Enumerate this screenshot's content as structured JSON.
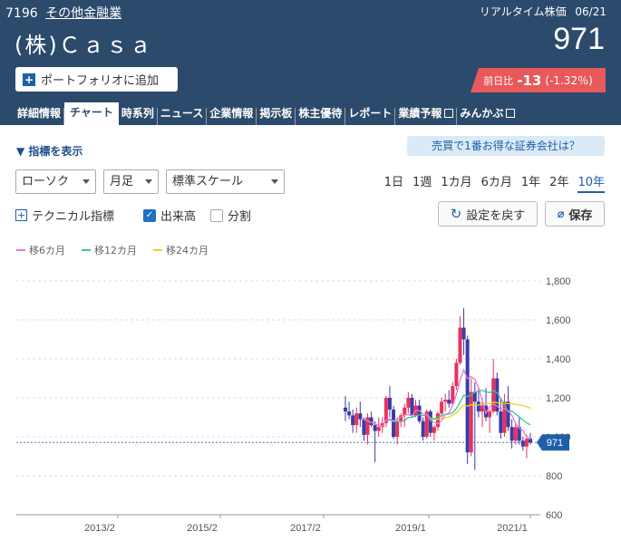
{
  "header": {
    "code": "7196",
    "category": "その他金融業",
    "realtime_label": "リアルタイム株価",
    "date": "06/21",
    "company": "(株)Ｃａｓａ",
    "price": "971",
    "portfolio_label": "ポートフォリオに追加",
    "change_label": "前日比",
    "change_value": "-13",
    "change_pct": "(-1.32％)"
  },
  "tabs": [
    "詳細情報",
    "チャート",
    "時系列",
    "ニュース",
    "企業情報",
    "掲示板",
    "株主優待",
    "レポート",
    "業績予報",
    "みんかぶ"
  ],
  "controls": {
    "indicator_toggle": "指標を表示",
    "promo": "売買で1番お得な証券会社は？",
    "chart_type": "ローソク",
    "interval": "月足",
    "scale": "標準スケール",
    "periods": [
      "1日",
      "1週",
      "1カ月",
      "6カ月",
      "1年",
      "2年",
      "10年"
    ],
    "active_period": "10年",
    "technical": "テクニカル指標",
    "volume": "出来高",
    "split": "分割",
    "reset": "設定を戻す",
    "save": "保存"
  },
  "colors": {
    "header": "#2c4a6b",
    "up": "#e8325a",
    "down": "#3b3ba8",
    "ma6": "#e37ad8",
    "ma12": "#35c79a",
    "ma24": "#e8d61a",
    "accent": "#1f5fa8"
  },
  "chart_data": {
    "type": "candlestick",
    "x_ticks": [
      "2013/2",
      "2015/2",
      "2017/2",
      "2019/1",
      "2021/1"
    ],
    "y_ticks": [
      600,
      800,
      1000,
      1200,
      1400,
      1600,
      1800
    ],
    "ylim": [
      600,
      1800
    ],
    "current_price_label": "971",
    "current_price": 971,
    "legend": [
      "移6カ月",
      "移12カ月",
      "移24カ月"
    ],
    "candles": [
      {
        "o": 1150,
        "h": 1210,
        "l": 1080,
        "c": 1130
      },
      {
        "o": 1130,
        "h": 1180,
        "l": 1090,
        "c": 1110
      },
      {
        "o": 1110,
        "h": 1140,
        "l": 1020,
        "c": 1060
      },
      {
        "o": 1060,
        "h": 1150,
        "l": 1020,
        "c": 1120
      },
      {
        "o": 1120,
        "h": 1180,
        "l": 1050,
        "c": 1090
      },
      {
        "o": 1090,
        "h": 1100,
        "l": 980,
        "c": 1010
      },
      {
        "o": 1010,
        "h": 1120,
        "l": 960,
        "c": 1100
      },
      {
        "o": 1100,
        "h": 1130,
        "l": 1050,
        "c": 1060
      },
      {
        "o": 1060,
        "h": 1080,
        "l": 870,
        "c": 1030
      },
      {
        "o": 1030,
        "h": 1100,
        "l": 1000,
        "c": 1050
      },
      {
        "o": 1050,
        "h": 1100,
        "l": 1020,
        "c": 1070
      },
      {
        "o": 1070,
        "h": 1210,
        "l": 1050,
        "c": 1200
      },
      {
        "o": 1200,
        "h": 1260,
        "l": 1100,
        "c": 1140
      },
      {
        "o": 1140,
        "h": 1160,
        "l": 990,
        "c": 1000
      },
      {
        "o": 1000,
        "h": 1100,
        "l": 960,
        "c": 1080
      },
      {
        "o": 1080,
        "h": 1120,
        "l": 1050,
        "c": 1110
      },
      {
        "o": 1110,
        "h": 1170,
        "l": 1050,
        "c": 1150
      },
      {
        "o": 1150,
        "h": 1230,
        "l": 1120,
        "c": 1200
      },
      {
        "o": 1200,
        "h": 1220,
        "l": 1100,
        "c": 1110
      },
      {
        "o": 1110,
        "h": 1190,
        "l": 1100,
        "c": 1160
      },
      {
        "o": 1160,
        "h": 1190,
        "l": 1070,
        "c": 1080
      },
      {
        "o": 1080,
        "h": 1100,
        "l": 980,
        "c": 1000
      },
      {
        "o": 1000,
        "h": 1140,
        "l": 990,
        "c": 1130
      },
      {
        "o": 1130,
        "h": 1140,
        "l": 1000,
        "c": 1020
      },
      {
        "o": 1020,
        "h": 1060,
        "l": 980,
        "c": 1050
      },
      {
        "o": 1050,
        "h": 1130,
        "l": 1030,
        "c": 1120
      },
      {
        "o": 1120,
        "h": 1200,
        "l": 1100,
        "c": 1180
      },
      {
        "o": 1180,
        "h": 1220,
        "l": 1130,
        "c": 1190
      },
      {
        "o": 1190,
        "h": 1240,
        "l": 1150,
        "c": 1170
      },
      {
        "o": 1170,
        "h": 1280,
        "l": 1160,
        "c": 1260
      },
      {
        "o": 1260,
        "h": 1400,
        "l": 1240,
        "c": 1380
      },
      {
        "o": 1380,
        "h": 1620,
        "l": 1370,
        "c": 1560
      },
      {
        "o": 1560,
        "h": 1660,
        "l": 1420,
        "c": 1500
      },
      {
        "o": 1500,
        "h": 1520,
        "l": 860,
        "c": 920
      },
      {
        "o": 920,
        "h": 1300,
        "l": 900,
        "c": 1230
      },
      {
        "o": 1230,
        "h": 1280,
        "l": 830,
        "c": 1180
      },
      {
        "o": 1180,
        "h": 1250,
        "l": 1100,
        "c": 1130
      },
      {
        "o": 1130,
        "h": 1200,
        "l": 1050,
        "c": 1160
      },
      {
        "o": 1160,
        "h": 1250,
        "l": 1080,
        "c": 1100
      },
      {
        "o": 1100,
        "h": 1140,
        "l": 1020,
        "c": 1130
      },
      {
        "o": 1130,
        "h": 1400,
        "l": 1120,
        "c": 1300
      },
      {
        "o": 1300,
        "h": 1330,
        "l": 1110,
        "c": 1130
      },
      {
        "o": 1130,
        "h": 1200,
        "l": 990,
        "c": 1020
      },
      {
        "o": 1020,
        "h": 1220,
        "l": 1000,
        "c": 1180
      },
      {
        "o": 1180,
        "h": 1260,
        "l": 1030,
        "c": 1050
      },
      {
        "o": 1050,
        "h": 1090,
        "l": 940,
        "c": 980
      },
      {
        "o": 980,
        "h": 1070,
        "l": 960,
        "c": 1050
      },
      {
        "o": 1050,
        "h": 1100,
        "l": 960,
        "c": 980
      },
      {
        "o": 980,
        "h": 1000,
        "l": 930,
        "c": 950
      },
      {
        "o": 950,
        "h": 1010,
        "l": 890,
        "c": 990
      },
      {
        "o": 990,
        "h": 1020,
        "l": 960,
        "c": 971
      }
    ]
  }
}
